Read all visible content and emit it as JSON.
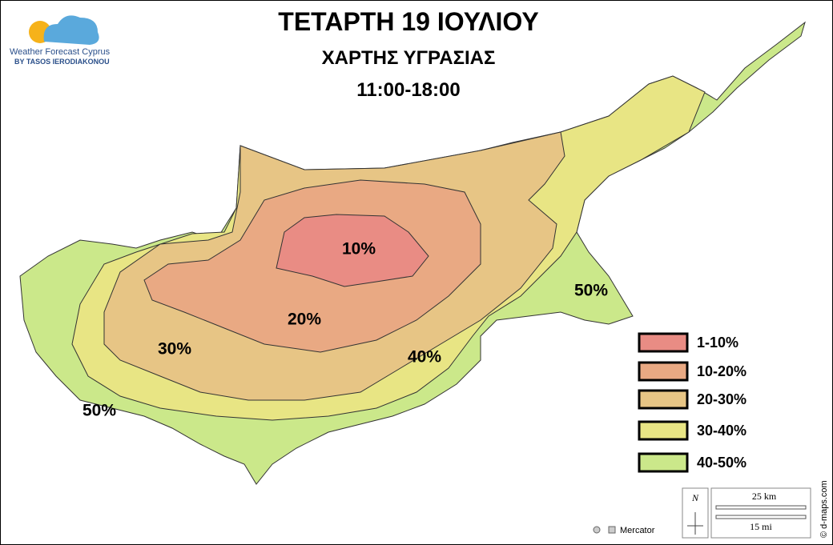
{
  "header": {
    "title": "ΤΕΤΑΡΤΗ 19 ΙΟΥΛΙΟΥ",
    "subtitle": "ΧΑΡΤΗΣ ΥΓΡΑΣΙΑΣ",
    "period": "11:00-18:00"
  },
  "logo": {
    "name": "Weather Forecast Cyprus",
    "byline": "BY TASOS IERODIAKONOU"
  },
  "map_labels": [
    "10%",
    "20%",
    "30%",
    "40%",
    "50%",
    "50%"
  ],
  "legend": [
    {
      "label": "1-10%",
      "color": "#e98c84"
    },
    {
      "label": "10-20%",
      "color": "#e9a983"
    },
    {
      "label": "20-30%",
      "color": "#e7c585"
    },
    {
      "label": "30-40%",
      "color": "#e8e584"
    },
    {
      "label": "40-50%",
      "color": "#cbe88a"
    }
  ],
  "scale": {
    "km": "25 km",
    "mi": "15 mi"
  },
  "north": "N",
  "projection": "Mercator",
  "credit": "© d-maps.com"
}
